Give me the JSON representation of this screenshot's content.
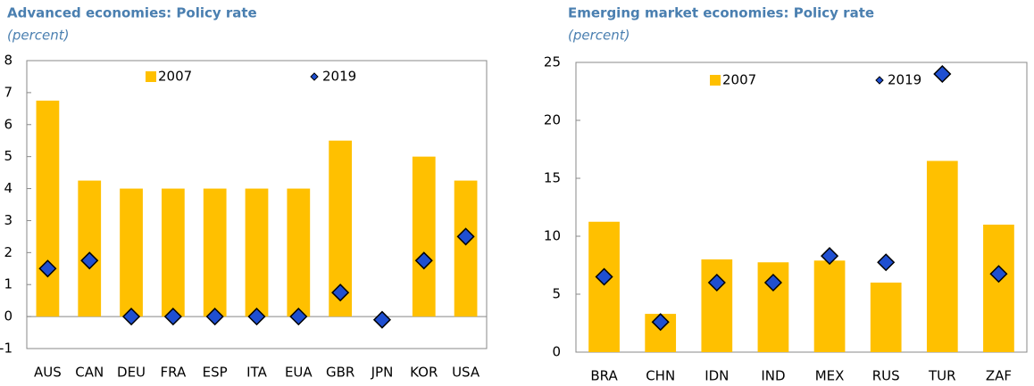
{
  "chart_data": [
    {
      "type": "bar",
      "title": "Advanced economies: Policy rate",
      "subtitle": "(percent)",
      "categories": [
        "AUS",
        "CAN",
        "DEU",
        "FRA",
        "ESP",
        "ITA",
        "EUA",
        "GBR",
        "JPN",
        "KOR",
        "USA"
      ],
      "series": [
        {
          "name": "2007",
          "color": "#ffc000",
          "values": [
            6.75,
            4.25,
            4,
            4,
            4,
            4,
            4,
            5.5,
            null,
            5,
            4.25
          ]
        },
        {
          "name": "2019",
          "color": "#1f4fd1",
          "values": [
            1.5,
            1.75,
            0,
            0,
            0,
            0,
            0,
            0.75,
            -0.1,
            1.75,
            2.5
          ]
        }
      ],
      "ylim": [
        -1,
        8
      ],
      "yticks": [
        -1,
        0,
        1,
        2,
        3,
        4,
        5,
        6,
        7,
        8
      ]
    },
    {
      "type": "bar",
      "title": "Emerging market economies: Policy rate",
      "subtitle": "(percent)",
      "categories": [
        "BRA",
        "CHN",
        "IDN",
        "IND",
        "MEX",
        "RUS",
        "TUR",
        "ZAF"
      ],
      "series": [
        {
          "name": "2007",
          "color": "#ffc000",
          "values": [
            11.25,
            3.3,
            8,
            7.75,
            7.9,
            6,
            16.5,
            11
          ]
        },
        {
          "name": "2019",
          "color": "#1f4fd1",
          "values": [
            6.5,
            2.6,
            6,
            6,
            8.3,
            7.75,
            24,
            6.75
          ]
        }
      ],
      "ylim": [
        0,
        25
      ],
      "yticks": [
        0,
        5,
        10,
        15,
        20,
        25
      ]
    }
  ]
}
